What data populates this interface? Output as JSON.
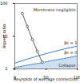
{
  "chart_data": {
    "type": "line",
    "x_label": "Reynolds of average connection",
    "y_label": "Aspect ratio",
    "xlim": [
      0,
      100
    ],
    "ylim": [
      1,
      100
    ],
    "log": "y",
    "xticks": [
      0,
      50,
      100
    ],
    "yticks": [
      1,
      10,
      100
    ],
    "annotations": [
      "Membrane negligible",
      "Collapse"
    ],
    "series": [
      {
        "name": "βs = 1",
        "color": "#3b7fc4",
        "line_style": "solid",
        "x": [
          0,
          20,
          40,
          60,
          80,
          100
        ],
        "values": [
          1.5,
          2,
          2.6,
          3.3,
          4.1,
          5
        ]
      },
      {
        "name": "βs = 0",
        "color": "#3b7fc4",
        "line_style": "dashed",
        "x": [
          0,
          20,
          40,
          60,
          80,
          100
        ],
        "values": [
          1.1,
          1.3,
          1.5,
          1.8,
          2.1,
          2.5
        ]
      },
      {
        "type": "scatter",
        "color": "#333333",
        "marker": "circle",
        "x": [
          12,
          20,
          28,
          36,
          44
        ],
        "values": [
          50,
          20,
          8,
          3.5,
          1.6
        ]
      }
    ]
  }
}
